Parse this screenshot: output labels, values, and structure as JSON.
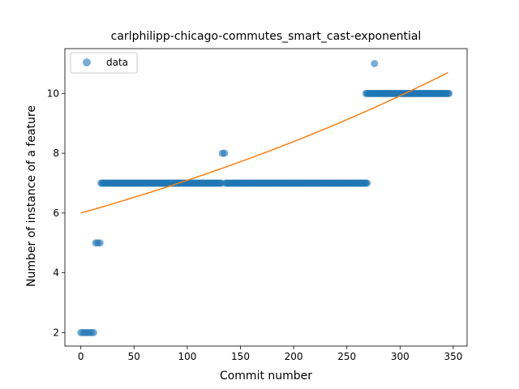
{
  "chart_data": {
    "type": "scatter",
    "title": "carlphilipp-chicago-commutes_smart_cast-exponential",
    "xlabel": "Commit number",
    "ylabel": "Number of instance of a feature",
    "xlim": [
      -15,
      363
    ],
    "ylim": [
      1.55,
      11.5
    ],
    "xticks": [
      0,
      50,
      100,
      150,
      200,
      250,
      300,
      350
    ],
    "yticks": [
      2,
      4,
      6,
      8,
      10
    ],
    "legend": {
      "position": "upper-left",
      "entries": [
        "data"
      ]
    },
    "colors": {
      "points": "#1f77b4",
      "fit": "#ff7f0e"
    },
    "series": [
      {
        "name": "data",
        "kind": "scatter",
        "points": [
          [
            0,
            2
          ],
          [
            2,
            2
          ],
          [
            4,
            2
          ],
          [
            6,
            2
          ],
          [
            8,
            2
          ],
          [
            10,
            2
          ],
          [
            12,
            2
          ],
          [
            14,
            5
          ],
          [
            16,
            5
          ],
          [
            18,
            5
          ],
          [
            133,
            8
          ],
          [
            135,
            8
          ],
          [
            276,
            11
          ],
          [
            [
              "range",
              19,
              132,
              1
            ],
            7
          ],
          [
            [
              "range",
              136,
              269,
              1
            ],
            7
          ],
          [
            [
              "range",
              268,
              346,
              1
            ],
            10
          ]
        ]
      },
      {
        "kind": "line",
        "model": "exponential",
        "x_start": 0,
        "x_end": 345,
        "y_start": 6.0,
        "y_end": 10.7
      }
    ]
  }
}
